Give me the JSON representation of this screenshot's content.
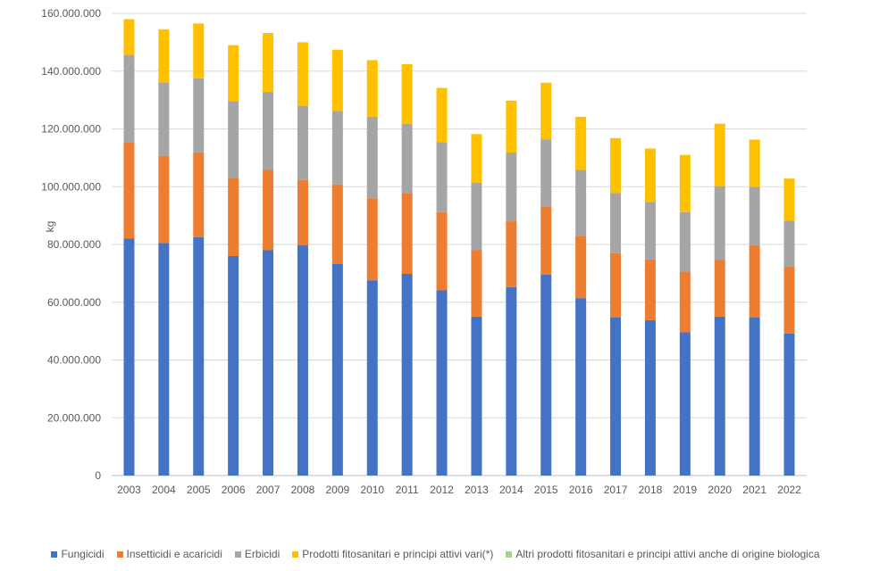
{
  "chart_data": {
    "type": "bar",
    "stacked": true,
    "title": "",
    "xlabel": "",
    "ylabel": "kg",
    "ylim": [
      0,
      160000000
    ],
    "yticks": [
      0,
      20000000,
      40000000,
      60000000,
      80000000,
      100000000,
      120000000,
      140000000,
      160000000
    ],
    "ytick_labels": [
      "0",
      "20.000.000",
      "40.000.000",
      "60.000.000",
      "80.000.000",
      "100.000.000",
      "120.000.000",
      "140.000.000",
      "160.000.000"
    ],
    "grid": true,
    "legend_position": "bottom",
    "categories": [
      "2003",
      "2004",
      "2005",
      "2006",
      "2007",
      "2008",
      "2009",
      "2010",
      "2011",
      "2012",
      "2013",
      "2014",
      "2015",
      "2016",
      "2017",
      "2018",
      "2019",
      "2020",
      "2021",
      "2022"
    ],
    "series": [
      {
        "name": "Fungicidi",
        "color": "#4472C4",
        "values": [
          82000000,
          80500000,
          82500000,
          76000000,
          78000000,
          79800000,
          73200000,
          67600000,
          69800000,
          64200000,
          55000000,
          65200000,
          69600000,
          61400000,
          54800000,
          53800000,
          49600000,
          55000000,
          54800000,
          49200000
        ]
      },
      {
        "name": "Insetticidi e acaricidi",
        "color": "#ED7D31",
        "values": [
          33400000,
          30200000,
          29400000,
          27000000,
          27800000,
          22500000,
          27600000,
          28400000,
          28000000,
          27000000,
          23000000,
          22800000,
          23600000,
          21600000,
          22200000,
          21000000,
          21000000,
          19600000,
          25000000,
          23200000
        ]
      },
      {
        "name": "Erbicidi",
        "color": "#A5A5A5",
        "values": [
          30200000,
          25400000,
          25600000,
          26600000,
          27000000,
          25700000,
          25400000,
          28200000,
          24000000,
          24200000,
          23400000,
          23800000,
          23200000,
          22800000,
          20800000,
          19900000,
          20600000,
          25600000,
          20100000,
          15800000
        ]
      },
      {
        "name": "Prodotti fitosanitari e principi attivi vari(*)",
        "color": "#FFC000",
        "values": [
          12400000,
          18400000,
          19000000,
          19400000,
          20400000,
          22000000,
          21200000,
          19600000,
          20600000,
          18800000,
          16800000,
          18000000,
          19600000,
          18400000,
          19000000,
          18500000,
          19800000,
          21600000,
          16400000,
          14600000
        ]
      },
      {
        "name": "Altri prodotti fitosanitari e principi attivi anche di origine biologica",
        "color": "#70AD47",
        "values": [
          0,
          0,
          0,
          0,
          0,
          0,
          0,
          0,
          0,
          0,
          0,
          0,
          0,
          0,
          0,
          0,
          0,
          0,
          0,
          0
        ]
      }
    ]
  },
  "legend": {
    "items": [
      {
        "label": "Fungicidi",
        "color": "#4472C4"
      },
      {
        "label": "Insetticidi e acaricidi",
        "color": "#ED7D31"
      },
      {
        "label": "Erbicidi",
        "color": "#A5A5A5"
      },
      {
        "label": "Prodotti fitosanitari e principi attivi vari(*)",
        "color": "#FFC000"
      },
      {
        "label": "Altri prodotti fitosanitari e principi attivi anche di origine biologica",
        "color": "#A9D18E"
      }
    ]
  }
}
